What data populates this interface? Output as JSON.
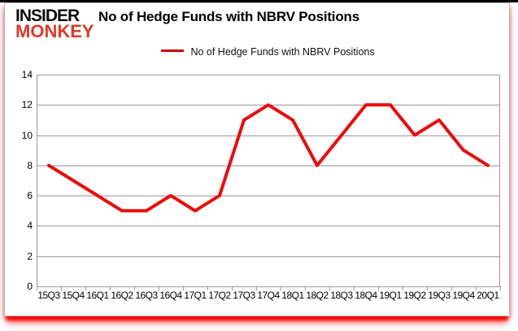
{
  "logo": {
    "line1": "INSIDER",
    "line2": "MONKEY"
  },
  "header": {
    "title": "No of Hedge Funds with NBRV Positions"
  },
  "legend": {
    "label": "No of Hedge Funds with NBRV Positions"
  },
  "colors": {
    "line": "#ee0a0a",
    "legend_swatch": "#cc0000",
    "logo_red": "#dd3a2a",
    "grid": "#999999",
    "shadow": "#ff0000",
    "text": "#000000"
  },
  "chart_data": {
    "type": "line",
    "title": "No of Hedge Funds with NBRV Positions",
    "legend_position": "top-center",
    "grid": true,
    "xlabel": "",
    "ylabel": "",
    "categories": [
      "15Q3",
      "15Q4",
      "16Q1",
      "16Q2",
      "16Q3",
      "16Q4",
      "17Q1",
      "17Q2",
      "17Q3",
      "17Q4",
      "18Q1",
      "18Q2",
      "18Q3",
      "18Q4",
      "19Q1",
      "19Q2",
      "19Q3",
      "19Q4",
      "20Q1"
    ],
    "series": [
      {
        "name": "No of Hedge Funds with NBRV Positions",
        "color": "#ee0a0a",
        "values": [
          8,
          7,
          6,
          5,
          5,
          6,
          5,
          6,
          11,
          12,
          11,
          8,
          10,
          12,
          12,
          10,
          11,
          9,
          8
        ]
      }
    ],
    "ylim": [
      0,
      14
    ],
    "yticks": [
      0,
      2,
      4,
      6,
      8,
      10,
      12,
      14
    ]
  }
}
